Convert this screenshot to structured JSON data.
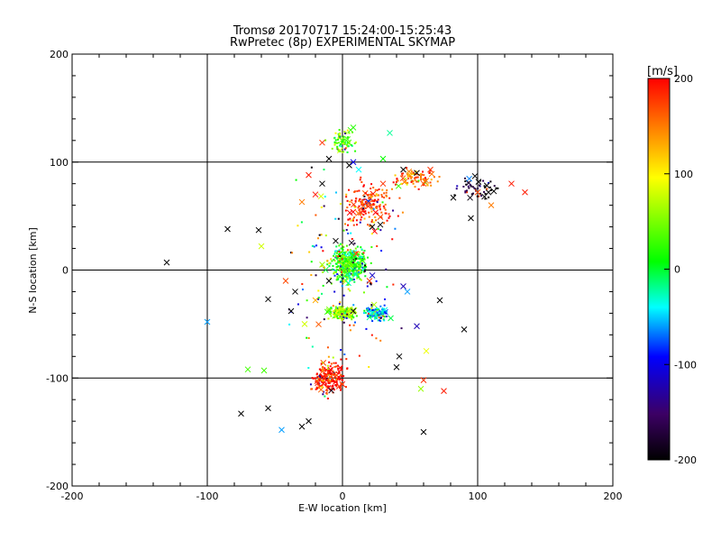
{
  "chart_data": {
    "type": "scatter",
    "title": "Tromsø 20170717 15:24:00-15:25:43",
    "subtitle": "RwPretec (8p) EXPERIMENTAL SKYMAP",
    "xlabel": "E-W location [km]",
    "ylabel": "N-S location [km]",
    "xlim": [
      -200,
      200
    ],
    "ylim": [
      -200,
      200
    ],
    "xticks": [
      "-200",
      "-100",
      "0",
      "100",
      "200"
    ],
    "yticks": [
      "-200",
      "-100",
      "0",
      "100",
      "200"
    ],
    "grid": true,
    "grid_lines": [
      -100,
      0,
      100
    ],
    "colorbar": {
      "label": "[m/s]",
      "range": [
        -200,
        200
      ],
      "ticks": [
        "200",
        "100",
        "0",
        "-100",
        "-200"
      ],
      "colormap": [
        "#000000",
        "#3c0064",
        "#0000ff",
        "#00ffff",
        "#00ff00",
        "#ffff00",
        "#ff8000",
        "#ff0000"
      ]
    },
    "markers": [
      "dot",
      "x"
    ],
    "cluster_centers": [
      {
        "x": 5,
        "y": 5,
        "v": 20
      },
      {
        "x": 0,
        "y": -40,
        "v": 60
      },
      {
        "x": 25,
        "y": -40,
        "v": -40
      },
      {
        "x": 20,
        "y": 60,
        "v": 180
      },
      {
        "x": -10,
        "y": -100,
        "v": 190
      },
      {
        "x": 100,
        "y": 75,
        "v": -180
      },
      {
        "x": 55,
        "y": 85,
        "v": 160
      },
      {
        "x": 0,
        "y": 120,
        "v": 40
      }
    ],
    "points": [
      {
        "x": -130,
        "y": 7,
        "v": -200,
        "m": "x"
      },
      {
        "x": -100,
        "y": -48,
        "v": -60,
        "m": "x"
      },
      {
        "x": -85,
        "y": 38,
        "v": -200,
        "m": "x"
      },
      {
        "x": -62,
        "y": 37,
        "v": -200,
        "m": "x"
      },
      {
        "x": -60,
        "y": 22,
        "v": 80,
        "m": "x"
      },
      {
        "x": -55,
        "y": -27,
        "v": -200,
        "m": "x"
      },
      {
        "x": -75,
        "y": -133,
        "v": -200,
        "m": "x"
      },
      {
        "x": -55,
        "y": -128,
        "v": -200,
        "m": "x"
      },
      {
        "x": -45,
        "y": -148,
        "v": -60,
        "m": "x"
      },
      {
        "x": -25,
        "y": -140,
        "v": -200,
        "m": "x"
      },
      {
        "x": -30,
        "y": -145,
        "v": -200,
        "m": "x"
      },
      {
        "x": -58,
        "y": -93,
        "v": 30,
        "m": "x"
      },
      {
        "x": -70,
        "y": -92,
        "v": 30,
        "m": "x"
      },
      {
        "x": -38,
        "y": -38,
        "v": -200,
        "m": "x"
      },
      {
        "x": -28,
        "y": -50,
        "v": 80,
        "m": "x"
      },
      {
        "x": -35,
        "y": -20,
        "v": -200,
        "m": "x"
      },
      {
        "x": -20,
        "y": -28,
        "v": 130,
        "m": "x"
      },
      {
        "x": 8,
        "y": 132,
        "v": 20,
        "m": "x"
      },
      {
        "x": 35,
        "y": 127,
        "v": -20,
        "m": "x"
      },
      {
        "x": 30,
        "y": 103,
        "v": 10,
        "m": "x"
      },
      {
        "x": 5,
        "y": 97,
        "v": -200,
        "m": "x"
      },
      {
        "x": 8,
        "y": 100,
        "v": -100,
        "m": "x"
      },
      {
        "x": 12,
        "y": 93,
        "v": -40,
        "m": "x"
      },
      {
        "x": -10,
        "y": 103,
        "v": -200,
        "m": "x"
      },
      {
        "x": -15,
        "y": 118,
        "v": 180,
        "m": "x"
      },
      {
        "x": 30,
        "y": 80,
        "v": 180,
        "m": "x"
      },
      {
        "x": 45,
        "y": 93,
        "v": -200,
        "m": "x"
      },
      {
        "x": 55,
        "y": 90,
        "v": -200,
        "m": "x"
      },
      {
        "x": 60,
        "y": 80,
        "v": 170,
        "m": "x"
      },
      {
        "x": 65,
        "y": 93,
        "v": 180,
        "m": "x"
      },
      {
        "x": 82,
        "y": 67,
        "v": -200,
        "m": "x"
      },
      {
        "x": 95,
        "y": 48,
        "v": -200,
        "m": "x"
      },
      {
        "x": 98,
        "y": 87,
        "v": -200,
        "m": "x"
      },
      {
        "x": 100,
        "y": 72,
        "v": 170,
        "m": "x"
      },
      {
        "x": 105,
        "y": 68,
        "v": -200,
        "m": "x"
      },
      {
        "x": 108,
        "y": 72,
        "v": -200,
        "m": "x"
      },
      {
        "x": 110,
        "y": 60,
        "v": 150,
        "m": "x"
      },
      {
        "x": 112,
        "y": 73,
        "v": -200,
        "m": "x"
      },
      {
        "x": 125,
        "y": 80,
        "v": 190,
        "m": "x"
      },
      {
        "x": 135,
        "y": 72,
        "v": 190,
        "m": "x"
      },
      {
        "x": 90,
        "y": -55,
        "v": -200,
        "m": "x"
      },
      {
        "x": 72,
        "y": -28,
        "v": -200,
        "m": "x"
      },
      {
        "x": 62,
        "y": -75,
        "v": 90,
        "m": "x"
      },
      {
        "x": 55,
        "y": -52,
        "v": -120,
        "m": "x"
      },
      {
        "x": 42,
        "y": -80,
        "v": -200,
        "m": "x"
      },
      {
        "x": 40,
        "y": -90,
        "v": -200,
        "m": "x"
      },
      {
        "x": 60,
        "y": -102,
        "v": 180,
        "m": "x"
      },
      {
        "x": 75,
        "y": -112,
        "v": 190,
        "m": "x"
      },
      {
        "x": 58,
        "y": -110,
        "v": 60,
        "m": "x"
      },
      {
        "x": 60,
        "y": -150,
        "v": -200,
        "m": "x"
      },
      {
        "x": 48,
        "y": -20,
        "v": -60,
        "m": "x"
      },
      {
        "x": 45,
        "y": -15,
        "v": -120,
        "m": "x"
      },
      {
        "x": 28,
        "y": 42,
        "v": -200,
        "m": "x"
      },
      {
        "x": 22,
        "y": 40,
        "v": -200,
        "m": "x"
      },
      {
        "x": -5,
        "y": 27,
        "v": -200,
        "m": "x"
      },
      {
        "x": -30,
        "y": 63,
        "v": 150,
        "m": "x"
      },
      {
        "x": -20,
        "y": 70,
        "v": 190,
        "m": "x"
      },
      {
        "x": -25,
        "y": 88,
        "v": 190,
        "m": "x"
      },
      {
        "x": -15,
        "y": 80,
        "v": -200,
        "m": "x"
      },
      {
        "x": -42,
        "y": -10,
        "v": 170,
        "m": "x"
      },
      {
        "x": -10,
        "y": -10,
        "v": -200,
        "m": "x"
      },
      {
        "x": -15,
        "y": 5,
        "v": 60,
        "m": "x"
      },
      {
        "x": 20,
        "y": -10,
        "v": 180,
        "m": "x"
      },
      {
        "x": 10,
        "y": 15,
        "v": 170,
        "m": "x"
      }
    ]
  }
}
